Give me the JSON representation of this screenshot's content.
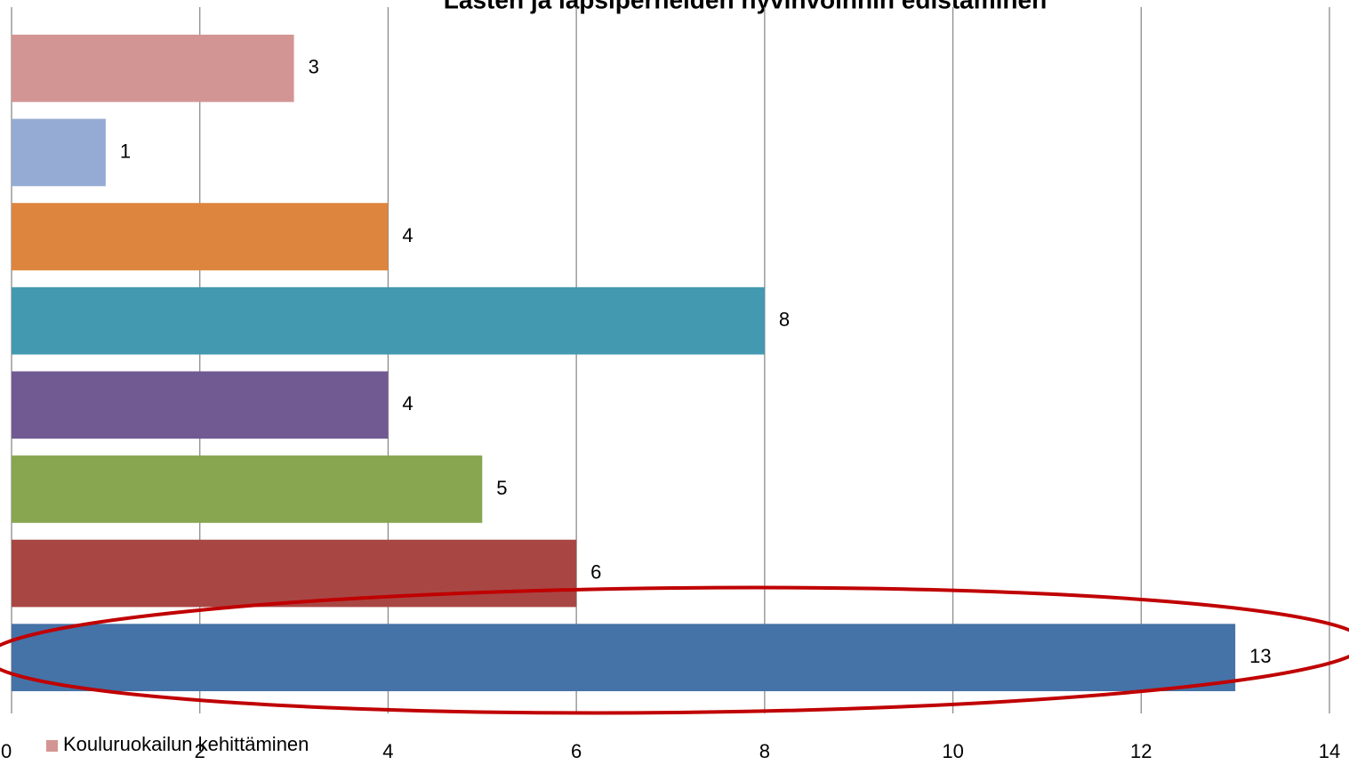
{
  "chart_data": {
    "type": "bar",
    "orientation": "horizontal",
    "title": "Lasten ja lapsiperheiden hyvinvoinnin edistäminen",
    "categories": [
      null,
      null,
      null,
      null,
      null,
      null,
      null,
      null
    ],
    "values": [
      3,
      1,
      4,
      8,
      4,
      5,
      6,
      13
    ],
    "colors": [
      "#d39593",
      "#95abd3",
      "#dd853e",
      "#4299b0",
      "#715a92",
      "#88a54f",
      "#a84644",
      "#4572a7"
    ],
    "legend": {
      "name": "Kouluruokailun kehittäminen",
      "color": "#d39593",
      "position": "bottom"
    },
    "xlim": [
      0,
      14
    ],
    "xticks": [
      0,
      2,
      4,
      6,
      8,
      10,
      12,
      14
    ],
    "grid": true
  }
}
